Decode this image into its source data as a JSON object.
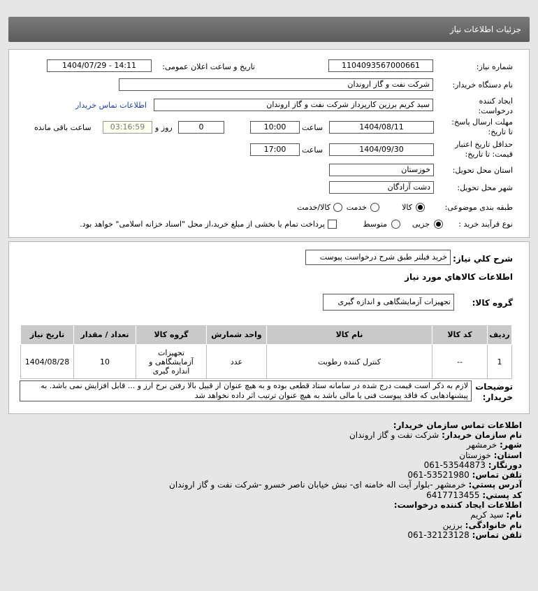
{
  "header": {
    "title": "جزئیات اطلاعات نیاز"
  },
  "form": {
    "need_number_label": "شماره نیاز:",
    "need_number": "1104093567000661",
    "announce_label": "تاریخ و ساعت اعلان عمومی:",
    "announce_value": "1404/07/29 - 14:11",
    "buyer_org_label": "نام دستگاه خریدار:",
    "buyer_org": "شرکت نفت و گاز اروندان",
    "creator_label_1": "ایجاد کننده",
    "creator_label_2": "درخواست:",
    "creator": "سید کریم برزین کارپرداز شرکت نفت و گاز اروندان",
    "contact_link": "اطلاعات تماس خریدار",
    "deadline_label_1": "مهلت ارسال پاسخ:",
    "deadline_label_2": "تا تاریخ:",
    "deadline_date": "1404/08/11",
    "time_label": "ساعت",
    "deadline_time": "10:00",
    "days": "0",
    "days_label": "روز و",
    "remaining": "03:16:59",
    "remaining_label": "ساعت باقی مانده",
    "validity_label_1": "حداقل تاریخ اعتبار",
    "validity_label_2": "قیمت: تا تاریخ:",
    "validity_date": "1404/09/30",
    "validity_time": "17:00",
    "province_label": "استان محل تحویل:",
    "province": "خوزستان",
    "city_label": "شهر محل تحویل:",
    "city": "دشت آزادگان",
    "category_label": "طبقه بندی موضوعی:",
    "category_options": [
      "کالا",
      "خدمت",
      "کالا/خدمت"
    ],
    "category_selected": "کالا",
    "process_label": "نوع فرآیند خرید :",
    "process_options": [
      "جزیی",
      "متوسط"
    ],
    "process_selected": "جزیی",
    "payment_note": "پرداخت تمام یا بخشی از مبلغ خرید،از محل \"اسناد خزانه اسلامی\" خواهد بود."
  },
  "need": {
    "summary_label": "شرح کلي نياز:",
    "summary": "خرید فیلتر طبق شرح درخواست پیوست",
    "goods_title": "اطلاعات کالاهاي مورد نياز",
    "group_label": "گروه کالا:",
    "group": "تجهیزات آزمایشگاهی و اندازه گیری",
    "table": {
      "headers": [
        "ردیف",
        "کد کالا",
        "نام کالا",
        "واحد شمارش",
        "گروه کالا",
        "تعداد / مقدار",
        "تاریخ نیاز"
      ],
      "rows": [
        [
          "1",
          "--",
          "کنترل کننده رطوبت",
          "عدد",
          "تجهیزات آزمایشگاهی و اندازه گیری",
          "10",
          "1404/08/28"
        ]
      ]
    },
    "notes_label_1": "توضیحات",
    "notes_label_2": "خریدار:",
    "notes": "لازم به ذکر است قیمت درج شده در سامانه ستاد قطعی بوده و به هیچ عنوان از قبیل بالا رفتن نرخ ارز و ... قابل افزایش نمی باشد. به پیشنهادهایی که فاقد پیوست فنی یا مالی باشد به هیچ عنوان ترتیب اثر داده نخواهد شد"
  },
  "contact": {
    "title": "اطلاعات تماس سازمان خریدار:",
    "lines": [
      {
        "k": "نام سازمان خریدار:",
        "v": "شرکت نفت و گاز اروندان"
      },
      {
        "k": "شهر:",
        "v": "خرمشهر"
      },
      {
        "k": "استان:",
        "v": "خوزستان"
      },
      {
        "k": "دورنگار:",
        "v": "53544873-061"
      },
      {
        "k": "تلفن تماس:",
        "v": "53521980-061"
      },
      {
        "k": "آدرس پستي:",
        "v": "خرمشهر -بلوار آیت اله خامنه ای- نبش خیابان ناصر خسرو -شرکت نفت و گاز اروندان"
      },
      {
        "k": "کد پستي:",
        "v": "6417713455"
      }
    ],
    "creator_title": "اطلاعات ایجاد کننده درخواست:",
    "creator_lines": [
      {
        "k": "نام:",
        "v": "سید کریم"
      },
      {
        "k": "نام خانوادگی:",
        "v": "برزین"
      },
      {
        "k": "تلفن تماس:",
        "v": "32123128-061"
      }
    ]
  }
}
